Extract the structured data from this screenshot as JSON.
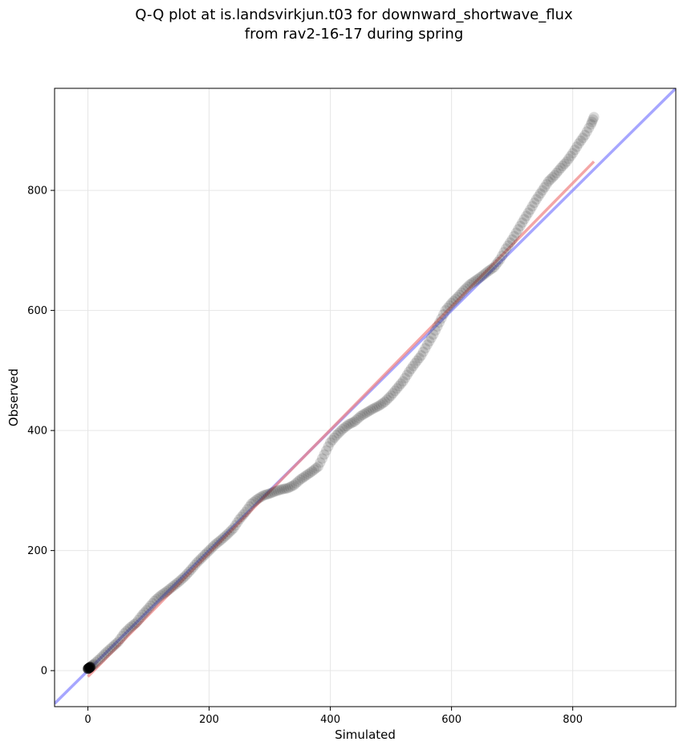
{
  "chart_data": {
    "type": "scatter",
    "title_lines": [
      "Q-Q plot at is.landsvirkjun.t03 for downward_shortwave_flux",
      "from rav2-16-17 during spring"
    ],
    "xlabel": "Simulated",
    "ylabel": "Observed",
    "xlim": [
      -55,
      970
    ],
    "ylim": [
      -60,
      970
    ],
    "xticks": [
      0,
      200,
      400,
      600,
      800
    ],
    "yticks": [
      0,
      200,
      400,
      600,
      800
    ],
    "grid": true,
    "colors": {
      "points": "#3a3a3a",
      "fit_line": "#f08080",
      "identity_line": "#8080ff",
      "grid": "#e6e6e6"
    },
    "identity_line": {
      "from": [
        -55,
        -55
      ],
      "to": [
        970,
        970
      ]
    },
    "fit_line": {
      "from": [
        0,
        -10
      ],
      "to": [
        835,
        848
      ]
    },
    "quantile_anchors": [
      [
        0,
        3
      ],
      [
        5,
        7
      ],
      [
        10,
        11
      ],
      [
        20,
        20
      ],
      [
        30,
        30
      ],
      [
        40,
        39
      ],
      [
        50,
        48
      ],
      [
        60,
        62
      ],
      [
        70,
        72
      ],
      [
        80,
        80
      ],
      [
        90,
        93
      ],
      [
        100,
        104
      ],
      [
        110,
        116
      ],
      [
        120,
        125
      ],
      [
        130,
        132
      ],
      [
        140,
        140
      ],
      [
        150,
        148
      ],
      [
        160,
        157
      ],
      [
        170,
        168
      ],
      [
        180,
        180
      ],
      [
        190,
        190
      ],
      [
        200,
        200
      ],
      [
        210,
        210
      ],
      [
        220,
        218
      ],
      [
        230,
        227
      ],
      [
        240,
        237
      ],
      [
        250,
        252
      ],
      [
        260,
        264
      ],
      [
        270,
        278
      ],
      [
        280,
        286
      ],
      [
        290,
        292
      ],
      [
        300,
        295
      ],
      [
        310,
        299
      ],
      [
        320,
        302
      ],
      [
        330,
        304
      ],
      [
        340,
        309
      ],
      [
        350,
        318
      ],
      [
        360,
        325
      ],
      [
        370,
        332
      ],
      [
        380,
        340
      ],
      [
        390,
        360
      ],
      [
        400,
        380
      ],
      [
        410,
        392
      ],
      [
        420,
        402
      ],
      [
        430,
        410
      ],
      [
        440,
        415
      ],
      [
        450,
        424
      ],
      [
        460,
        430
      ],
      [
        470,
        436
      ],
      [
        480,
        441
      ],
      [
        490,
        448
      ],
      [
        500,
        458
      ],
      [
        510,
        470
      ],
      [
        520,
        482
      ],
      [
        530,
        498
      ],
      [
        540,
        512
      ],
      [
        550,
        525
      ],
      [
        560,
        543
      ],
      [
        570,
        560
      ],
      [
        580,
        580
      ],
      [
        590,
        600
      ],
      [
        600,
        612
      ],
      [
        610,
        622
      ],
      [
        620,
        633
      ],
      [
        630,
        643
      ],
      [
        640,
        650
      ],
      [
        650,
        657
      ],
      [
        660,
        665
      ],
      [
        670,
        672
      ],
      [
        680,
        685
      ],
      [
        690,
        703
      ],
      [
        700,
        718
      ],
      [
        710,
        735
      ],
      [
        720,
        752
      ],
      [
        730,
        768
      ],
      [
        740,
        785
      ],
      [
        750,
        800
      ],
      [
        760,
        815
      ],
      [
        770,
        825
      ],
      [
        780,
        837
      ],
      [
        790,
        848
      ],
      [
        800,
        862
      ],
      [
        810,
        878
      ],
      [
        820,
        892
      ],
      [
        830,
        910
      ],
      [
        835,
        922
      ]
    ]
  }
}
